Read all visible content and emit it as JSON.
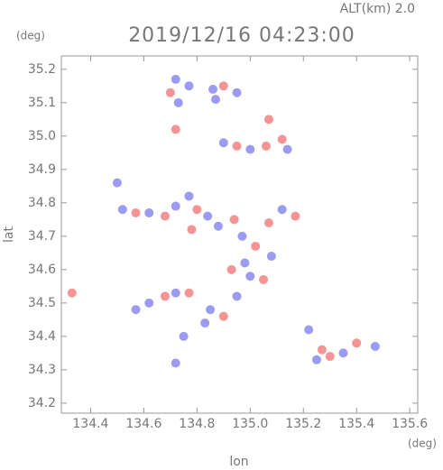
{
  "chart_data": {
    "type": "scatter",
    "title": "2019/12/16 04:23:00",
    "subtitle": "ALT(km) 2.0",
    "x_label": "lon",
    "y_label": "lat",
    "x_unit": "(deg)",
    "y_unit": "(deg)",
    "xlim": [
      134.29,
      135.63
    ],
    "ylim": [
      34.17,
      35.24
    ],
    "xticks": [
      134.4,
      134.6,
      134.8,
      {
        "value": 135.0,
        "label": "135.0"
      },
      135.2,
      135.4,
      135.6
    ],
    "yticks": [
      34.2,
      34.3,
      34.4,
      34.5,
      34.6,
      34.7,
      34.8,
      34.9,
      {
        "value": 35.0,
        "label": "35.0"
      },
      35.1,
      35.2
    ],
    "x": [
      134.33,
      134.72,
      134.7,
      134.77,
      134.86,
      134.9,
      134.87,
      134.73,
      134.95,
      135.07,
      134.72,
      134.9,
      134.95,
      135.0,
      135.06,
      135.12,
      135.14,
      134.52,
      134.57,
      134.62,
      134.68,
      134.72,
      134.77,
      134.8,
      134.84,
      134.78,
      134.88,
      134.94,
      134.97,
      135.07,
      135.12,
      135.17,
      135.02,
      135.08,
      134.98,
      134.93,
      135.0,
      134.62,
      134.68,
      134.72,
      134.77,
      134.85,
      134.9,
      134.83,
      134.95,
      135.05,
      135.22,
      135.27,
      135.3,
      135.25,
      135.35,
      135.4,
      135.47,
      134.72,
      134.57,
      134.75,
      134.5
    ],
    "values": [
      34.53,
      35.17,
      35.13,
      35.15,
      35.14,
      35.15,
      35.11,
      35.1,
      35.13,
      35.05,
      35.02,
      34.98,
      34.97,
      34.96,
      34.97,
      34.99,
      34.96,
      34.78,
      34.77,
      34.77,
      34.76,
      34.79,
      34.82,
      34.78,
      34.76,
      34.72,
      34.73,
      34.75,
      34.7,
      34.74,
      34.78,
      34.76,
      34.67,
      34.64,
      34.62,
      34.6,
      34.58,
      34.5,
      34.52,
      34.53,
      34.53,
      34.48,
      34.46,
      34.44,
      34.52,
      34.57,
      34.42,
      34.36,
      34.34,
      34.33,
      34.35,
      34.38,
      34.37,
      34.32,
      34.48,
      34.4,
      34.86
    ],
    "colors": [
      "#f07070",
      "#7a7af0",
      "#f07070",
      "#7a7af0",
      "#7a7af0",
      "#f07070",
      "#7a7af0",
      "#7a7af0",
      "#7a7af0",
      "#f07070",
      "#f07070",
      "#7a7af0",
      "#f07070",
      "#7a7af0",
      "#f07070",
      "#f07070",
      "#7a7af0",
      "#7a7af0",
      "#f07070",
      "#7a7af0",
      "#f07070",
      "#7a7af0",
      "#7a7af0",
      "#f07070",
      "#7a7af0",
      "#f07070",
      "#7a7af0",
      "#f07070",
      "#7a7af0",
      "#f07070",
      "#7a7af0",
      "#f07070",
      "#f07070",
      "#7a7af0",
      "#7a7af0",
      "#f07070",
      "#7a7af0",
      "#7a7af0",
      "#f07070",
      "#7a7af0",
      "#f07070",
      "#7a7af0",
      "#f07070",
      "#7a7af0",
      "#7a7af0",
      "#f07070",
      "#7a7af0",
      "#f07070",
      "#f07070",
      "#7a7af0",
      "#7a7af0",
      "#f07070",
      "#7a7af0",
      "#7a7af0",
      "#7a7af0",
      "#7a7af0",
      "#7a7af0"
    ]
  }
}
